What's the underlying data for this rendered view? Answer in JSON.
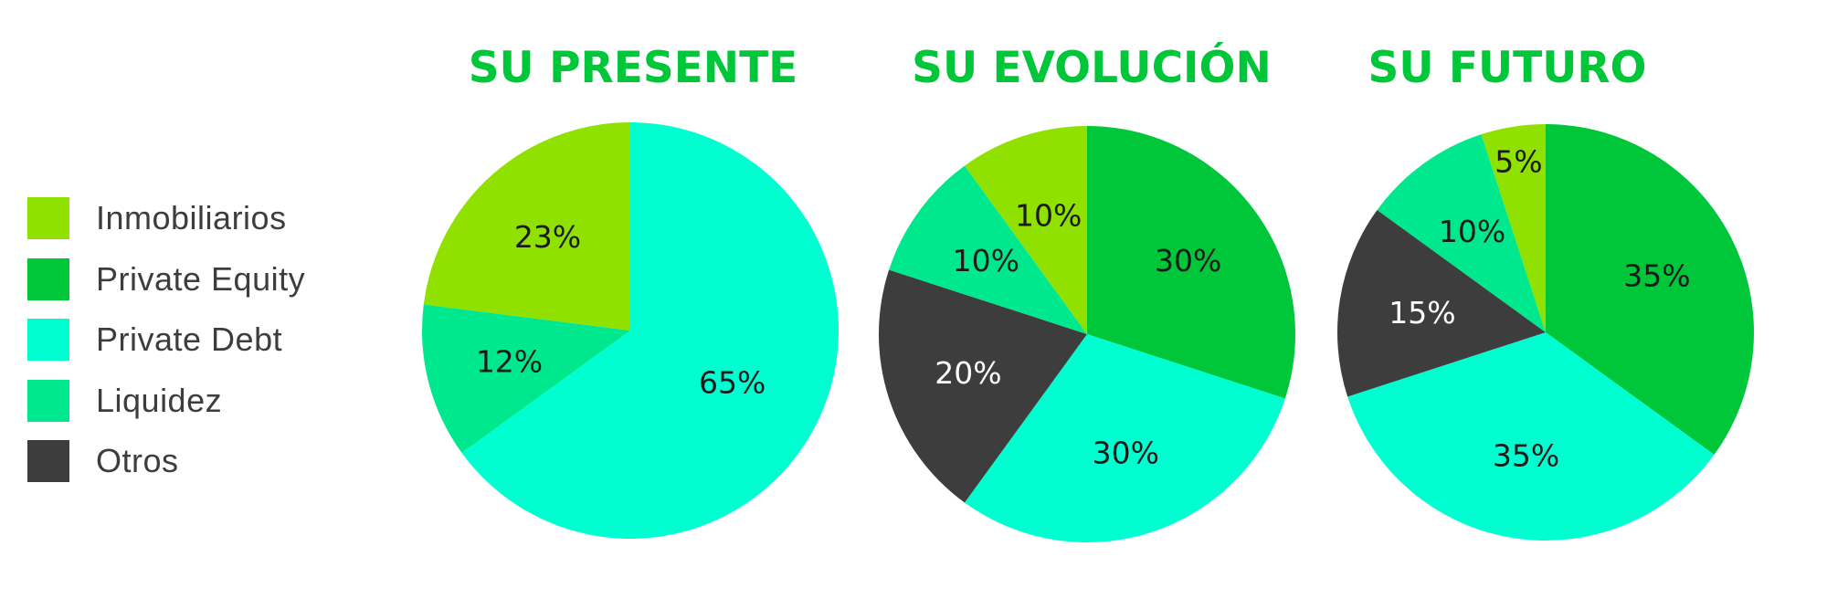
{
  "legend": [
    {
      "label": "Inmobiliarios",
      "color": "#90e000"
    },
    {
      "label": "Private Equity",
      "color": "#00c63a"
    },
    {
      "label": "Private Debt",
      "color": "#00ffd0"
    },
    {
      "label": "Liquidez",
      "color": "#00e88e"
    },
    {
      "label": "Otros",
      "color": "#3d3d3d"
    }
  ],
  "chart_data": [
    {
      "type": "pie",
      "title": "SU PRESENTE",
      "slices": [
        {
          "category": "Private Debt",
          "value": 65,
          "label": "65%",
          "color": "#00ffd0",
          "label_color": "#1a1a1a"
        },
        {
          "category": "Liquidez",
          "value": 12,
          "label": "12%",
          "color": "#00e88e",
          "label_color": "#1a1a1a"
        },
        {
          "category": "Inmobiliarios",
          "value": 23,
          "label": "23%",
          "color": "#90e000",
          "label_color": "#1a1a1a"
        }
      ]
    },
    {
      "type": "pie",
      "title": "SU EVOLUCIÓN",
      "slices": [
        {
          "category": "Private Equity",
          "value": 30,
          "label": "30%",
          "color": "#00c63a",
          "label_color": "#1a1a1a"
        },
        {
          "category": "Private Debt",
          "value": 30,
          "label": "30%",
          "color": "#00ffd0",
          "label_color": "#1a1a1a"
        },
        {
          "category": "Otros",
          "value": 20,
          "label": "20%",
          "color": "#3d3d3d",
          "label_color": "#ffffff"
        },
        {
          "category": "Liquidez",
          "value": 10,
          "label": "10%",
          "color": "#00e88e",
          "label_color": "#1a1a1a"
        },
        {
          "category": "Inmobiliarios",
          "value": 10,
          "label": "10%",
          "color": "#90e000",
          "label_color": "#1a1a1a"
        }
      ]
    },
    {
      "type": "pie",
      "title": "SU FUTURO",
      "slices": [
        {
          "category": "Private Equity",
          "value": 35,
          "label": "35%",
          "color": "#00c63a",
          "label_color": "#1a1a1a"
        },
        {
          "category": "Private Debt",
          "value": 35,
          "label": "35%",
          "color": "#00ffd0",
          "label_color": "#1a1a1a"
        },
        {
          "category": "Otros",
          "value": 15,
          "label": "15%",
          "color": "#3d3d3d",
          "label_color": "#ffffff"
        },
        {
          "category": "Liquidez",
          "value": 10,
          "label": "10%",
          "color": "#00e88e",
          "label_color": "#1a1a1a"
        },
        {
          "category": "Inmobiliarios",
          "value": 5,
          "label": "5%",
          "color": "#90e000",
          "label_color": "#1a1a1a"
        }
      ]
    }
  ]
}
